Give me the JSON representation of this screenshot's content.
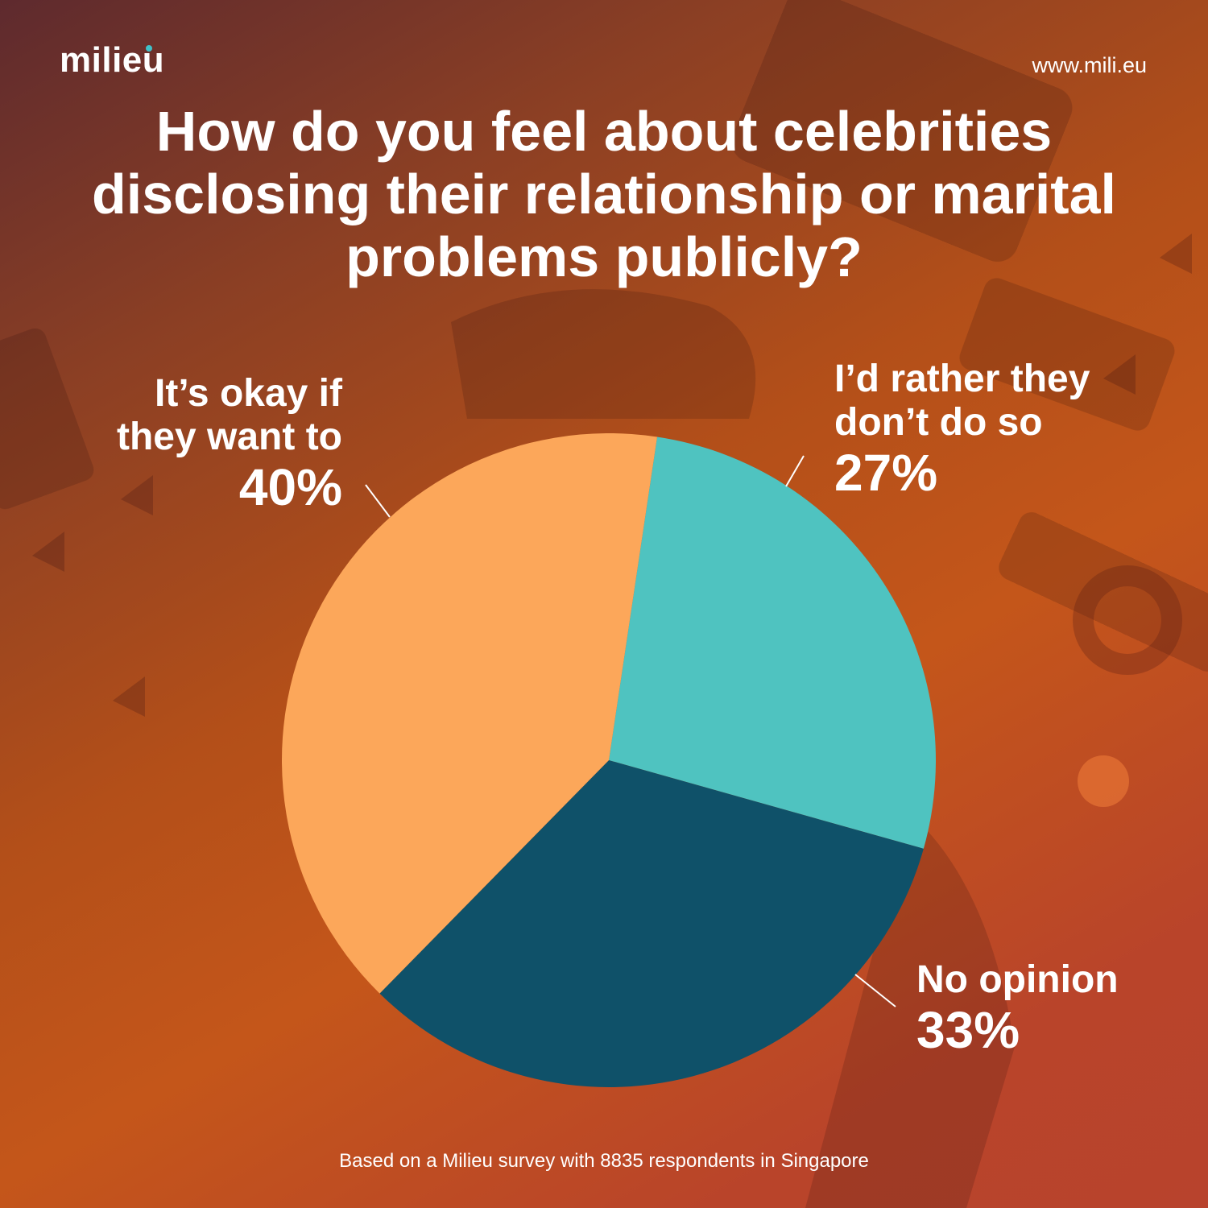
{
  "brand": {
    "logo": "milieu",
    "url": "www.mili.eu"
  },
  "title": "How do you feel about celebrities disclosing their relationship or marital problems publicly?",
  "footer": "Based on a Milieu survey with 8835 respondents in Singapore",
  "chart_data": {
    "type": "pie",
    "title": "How do you feel about celebrities disclosing their relationship or marital problems publicly?",
    "slices": [
      {
        "label_line1": "I’d rather they",
        "label_line2": "don’t do so",
        "value": 27,
        "display": "27%",
        "color": "#4fc3c0"
      },
      {
        "label_line1": "No opinion",
        "label_line2": "",
        "value": 33,
        "display": "33%",
        "color": "#0f5169"
      },
      {
        "label_line1": "It’s okay if",
        "label_line2": "they want to",
        "value": 40,
        "display": "40%",
        "color": "#fca75a"
      }
    ],
    "legend": "none",
    "data_labels": "outside"
  }
}
